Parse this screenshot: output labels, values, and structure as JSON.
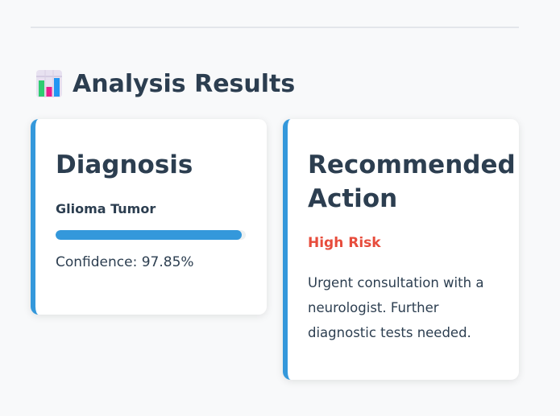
{
  "results": {
    "title": "Analysis Results",
    "icon": "bar-chart-icon"
  },
  "diagnosis": {
    "title": "Diagnosis",
    "tumor_type": "Glioma Tumor",
    "confidence_label": "Confidence: 97.85%",
    "confidence_fraction": 0.9785,
    "accent_color": "#3498db"
  },
  "action": {
    "title": "Recommended Action",
    "risk_level": "High Risk",
    "risk_color": "#e74c3c",
    "recommendation": "Urgent consultation with a neurologist. Further diagnostic tests needed."
  }
}
